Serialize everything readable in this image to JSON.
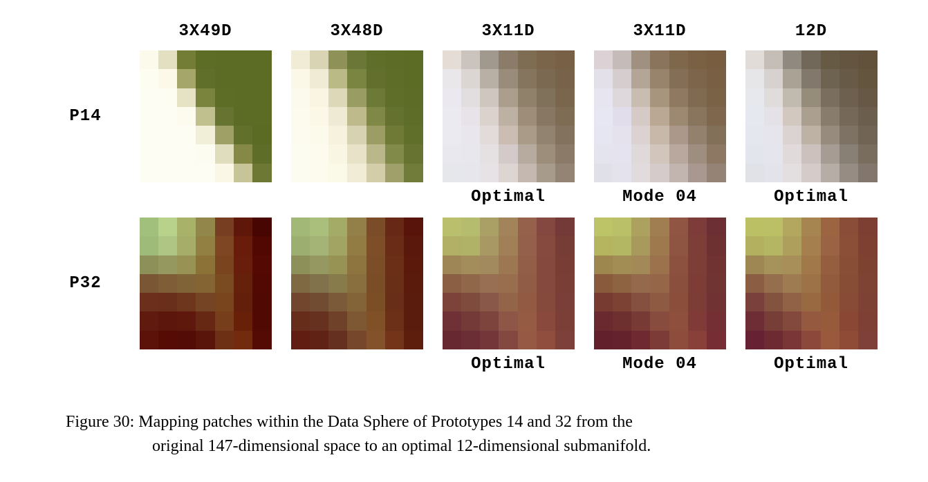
{
  "columnHeaders": [
    "3X49D",
    "3X48D",
    "3X11D",
    "3X11D",
    "12D"
  ],
  "rowLabels": [
    "P14",
    "P32"
  ],
  "subLabelsRow1": [
    "",
    "",
    "Optimal",
    "Mode 04",
    "Optimal"
  ],
  "subLabelsRow2": [
    "",
    "",
    "Optimal",
    "Mode 04",
    "Optimal"
  ],
  "caption": {
    "prefix": "Figure 30:",
    "line1": "Mapping patches within the Data Sphere of Prototypes 14 and 32 from the",
    "line2": "original 147-dimensional space to an optimal 12-dimensional submanifold."
  },
  "patches": {
    "p14c1": [
      [
        "#fcfaeb",
        "#e3e0c2",
        "#737d36",
        "#5e6d26",
        "#5c6c25",
        "#5c6c25",
        "#5c6c25"
      ],
      [
        "#fefdf1",
        "#fcf9e9",
        "#a5a66a",
        "#60702a",
        "#5c6c25",
        "#5c6c25",
        "#5c6c25"
      ],
      [
        "#fefdf3",
        "#fefdf2",
        "#e6e2c4",
        "#7a843d",
        "#5d6d26",
        "#5c6c25",
        "#5c6c25"
      ],
      [
        "#fefdf3",
        "#fefdf3",
        "#fdfbee",
        "#c0bf8e",
        "#677431",
        "#5c6c25",
        "#5c6c25"
      ],
      [
        "#fefdf3",
        "#fefdf3",
        "#fefdf3",
        "#f2efd9",
        "#9ea065",
        "#61712b",
        "#5b6b24"
      ],
      [
        "#fefdf3",
        "#fefdf3",
        "#fefdf3",
        "#fdfcf0",
        "#e0ddbf",
        "#848a46",
        "#5e6e28"
      ],
      [
        "#fefdf3",
        "#fefdf3",
        "#fefdf3",
        "#fefdf3",
        "#faf7e6",
        "#c7c597",
        "#6c7833"
      ]
    ],
    "p14c2": [
      [
        "#f0ecd6",
        "#d9d5b4",
        "#8e9258",
        "#6a7736",
        "#5f6e29",
        "#5d6c26",
        "#5c6c25"
      ],
      [
        "#fbf8e7",
        "#efebd4",
        "#baba86",
        "#7b8542",
        "#636f2d",
        "#5e6d27",
        "#5c6c25"
      ],
      [
        "#fcfaec",
        "#f9f5e2",
        "#dcd8b8",
        "#9a9d63",
        "#6d7936",
        "#5f6e28",
        "#5d6c26"
      ],
      [
        "#fdfbee",
        "#fbf8e7",
        "#eeead3",
        "#beba8c",
        "#7f8845",
        "#65722f",
        "#5e6d27"
      ],
      [
        "#fdfbef",
        "#fcfaea",
        "#f6f2dd",
        "#d7d3b2",
        "#9b9d64",
        "#6f7a37",
        "#606f29"
      ],
      [
        "#fdfcf0",
        "#fdfbed",
        "#faf6e4",
        "#e8e3c8",
        "#bab88a",
        "#828a49",
        "#667331"
      ],
      [
        "#fdfcf1",
        "#fdfbee",
        "#fbf9e8",
        "#f1ecd6",
        "#d3cea9",
        "#a0a16a",
        "#727c3a"
      ]
    ],
    "p14c3": [
      [
        "#e6dcd6",
        "#cbc3bd",
        "#a1988e",
        "#8a7c68",
        "#7e6d53",
        "#7a654a",
        "#776046"
      ],
      [
        "#eae7ea",
        "#dcd6d2",
        "#b8afa5",
        "#998c7b",
        "#85745e",
        "#7c6951",
        "#78634a"
      ],
      [
        "#ece8ef",
        "#e2ddde",
        "#cfc7bf",
        "#ab9e8d",
        "#90816b",
        "#80715a",
        "#7a664d"
      ],
      [
        "#ebeaf1",
        "#e8e3e8",
        "#dbd1cd",
        "#bdb1a3",
        "#9e8e79",
        "#887863",
        "#7e6c55"
      ],
      [
        "#eaeaf0",
        "#e9e6ed",
        "#e2dbda",
        "#cbbdb2",
        "#aa9a88",
        "#928270",
        "#83735e"
      ],
      [
        "#e8e8ee",
        "#e9e7ee",
        "#e5e0e1",
        "#d4caca",
        "#b7aa9e",
        "#9d8d7b",
        "#8b7a67"
      ],
      [
        "#e5e7eb",
        "#e8e6ed",
        "#e6e2e5",
        "#ddd5d2",
        "#c5b8b1",
        "#a79b8c",
        "#938474"
      ]
    ],
    "p14c4": [
      [
        "#dcd2d6",
        "#c5bbb8",
        "#9f907f",
        "#8a755c",
        "#7e674b",
        "#7a6144",
        "#785d40"
      ],
      [
        "#e4e0e9",
        "#d5cdce",
        "#b4a697",
        "#98846c",
        "#846e55",
        "#7c654a",
        "#795f43"
      ],
      [
        "#e7e5f0",
        "#ded7dc",
        "#c9bdb1",
        "#a8957e",
        "#8f7a61",
        "#806a51",
        "#7a6247"
      ],
      [
        "#e7e6f3",
        "#e2ddea",
        "#d6cac6",
        "#baa894",
        "#9d8872",
        "#89745d",
        "#7e674d"
      ],
      [
        "#e5e6f1",
        "#e5e2ee",
        "#dbd2d1",
        "#c7b8aa",
        "#ab988a",
        "#93806d",
        "#837058"
      ],
      [
        "#e3e4ee",
        "#e4e3ef",
        "#dfd9da",
        "#d1c5bc",
        "#b8a89d",
        "#9e8e80",
        "#8c7863"
      ],
      [
        "#e0e0e9",
        "#e3e2ed",
        "#e1dbdd",
        "#d5cbca",
        "#c2b4ae",
        "#a9988f",
        "#958376"
      ]
    ],
    "p14c5": [
      [
        "#e2dcd9",
        "#c4beb7",
        "#90897f",
        "#726859",
        "#665a45",
        "#645540",
        "#63523b"
      ],
      [
        "#e6e6e9",
        "#d7d2d0",
        "#aaa295",
        "#82786b",
        "#6e6251",
        "#675a47",
        "#64553f"
      ],
      [
        "#e7e7ee",
        "#e0dcdc",
        "#c1baae",
        "#968c7a",
        "#7a6e5e",
        "#6d604f",
        "#665844"
      ],
      [
        "#e6e8f0",
        "#e4e1e7",
        "#d2c8c0",
        "#aba08f",
        "#887c6c",
        "#756859",
        "#6b5e4c"
      ],
      [
        "#e5e7ef",
        "#e5e5eb",
        "#dbd2d2",
        "#beb2a5",
        "#978b7e",
        "#7e7265",
        "#726454"
      ],
      [
        "#e2e5ec",
        "#e4e5ed",
        "#e1dada",
        "#ccc1bc",
        "#a79c94",
        "#898075",
        "#796d5e"
      ],
      [
        "#e0e2e8",
        "#e3e4eb",
        "#e3dfe0",
        "#d5ccc9",
        "#b6ada6",
        "#968c84",
        "#83766c"
      ]
    ],
    "p32c1": [
      [
        "#a0c07b",
        "#b8d18b",
        "#a9b269",
        "#93864a",
        "#773e21",
        "#5f1709",
        "#470601"
      ],
      [
        "#9fbb79",
        "#aec583",
        "#a6ad68",
        "#927f42",
        "#7e4622",
        "#691c0a",
        "#520802"
      ],
      [
        "#8e9059",
        "#95985f",
        "#989254",
        "#8d7237",
        "#7a441f",
        "#681e0a",
        "#540a03"
      ],
      [
        "#7a5635",
        "#7e5d37",
        "#816338",
        "#846432",
        "#7a4a21",
        "#66210b",
        "#520903"
      ],
      [
        "#6b2f1b",
        "#6a2f1b",
        "#6e361c",
        "#754424",
        "#78451c",
        "#631f0a",
        "#500903"
      ],
      [
        "#611a0e",
        "#5d160b",
        "#5e190c",
        "#662713",
        "#763e1b",
        "#682009",
        "#500a03"
      ],
      [
        "#5c1208",
        "#560c05",
        "#540c06",
        "#591509",
        "#6e3015",
        "#722b0d",
        "#540b04"
      ]
    ],
    "p32c2": [
      [
        "#a2b877",
        "#aabf7c",
        "#a4ab67",
        "#937f48",
        "#7b4c28",
        "#682816",
        "#58140a"
      ],
      [
        "#9caf71",
        "#a4b477",
        "#a1a463",
        "#927c44",
        "#7d4e28",
        "#6b2c17",
        "#5a170b"
      ],
      [
        "#8e9059",
        "#959860",
        "#969355",
        "#8e7540",
        "#7c4e27",
        "#6b2e17",
        "#5b190c"
      ],
      [
        "#7e6943",
        "#82724b",
        "#887b4b",
        "#896f3d",
        "#7b4d27",
        "#6a2f17",
        "#5b1b0c"
      ],
      [
        "#71462c",
        "#714c32",
        "#7a5a38",
        "#836438",
        "#7c4e25",
        "#692e17",
        "#5a1d0d"
      ],
      [
        "#672d1b",
        "#66321f",
        "#6e4128",
        "#7e5832",
        "#805027",
        "#6c2f17",
        "#5a1d0d"
      ],
      [
        "#611d11",
        "#602215",
        "#663020",
        "#76472b",
        "#83522b",
        "#733419",
        "#5d1e0d"
      ]
    ],
    "p32c3": [
      [
        "#b9bf6c",
        "#b5bc6e",
        "#aaa066",
        "#a2835a",
        "#96614b",
        "#854840",
        "#743a37"
      ],
      [
        "#b2b066",
        "#b0b268",
        "#a89964",
        "#a17f57",
        "#95604b",
        "#864a3f",
        "#763c36"
      ],
      [
        "#9e8656",
        "#a28d5b",
        "#a28a5e",
        "#9c7752",
        "#925e47",
        "#85493e",
        "#783e35"
      ],
      [
        "#8b5f43",
        "#906849",
        "#986f52",
        "#996e4e",
        "#905c45",
        "#85493d",
        "#793f37"
      ],
      [
        "#7b433a",
        "#7e4b3d",
        "#895848",
        "#946448",
        "#925a42",
        "#864a3c",
        "#793f38"
      ],
      [
        "#6f3135",
        "#733a37",
        "#7c443d",
        "#8d5646",
        "#955b43",
        "#89493d",
        "#7b3f38"
      ],
      [
        "#672831",
        "#6c2e35",
        "#743639",
        "#83483f",
        "#965944",
        "#904e3f",
        "#7e403a"
      ]
    ],
    "p32c4": [
      [
        "#bdc467",
        "#b9c068",
        "#aca15f",
        "#a17e51",
        "#905543",
        "#7d3c39",
        "#6c2f33"
      ],
      [
        "#b5b45f",
        "#b3b662",
        "#a89a5d",
        "#9f794e",
        "#8f5543",
        "#7e3e38",
        "#6e3132"
      ],
      [
        "#9e874e",
        "#a28e55",
        "#a28957",
        "#9b724b",
        "#8c523f",
        "#7d3e37",
        "#703332"
      ],
      [
        "#895a3c",
        "#8e6342",
        "#95694b",
        "#956648",
        "#8a4f3d",
        "#7d3d36",
        "#703432"
      ],
      [
        "#773b32",
        "#7c4335",
        "#855040",
        "#8e5a41",
        "#8b4e3b",
        "#7d3c35",
        "#713233"
      ],
      [
        "#6a292f",
        "#6e302f",
        "#783a34",
        "#874c3e",
        "#8e503c",
        "#803a37",
        "#732f33"
      ],
      [
        "#62202c",
        "#64222d",
        "#6e2a30",
        "#7c3b36",
        "#8e4c3d",
        "#884039",
        "#762e34"
      ]
    ],
    "p32c5": [
      [
        "#bcc065",
        "#bbc067",
        "#b3a65e",
        "#a78551",
        "#9b6542",
        "#8a4d37",
        "#7c3f31"
      ],
      [
        "#b3b160",
        "#b4b664",
        "#ae9f5c",
        "#a5804e",
        "#9a6343",
        "#8b4e37",
        "#7e4031"
      ],
      [
        "#9e8753",
        "#a6935a",
        "#a88e58",
        "#a07849",
        "#955e3f",
        "#894e36",
        "#7e4231"
      ],
      [
        "#8b5e44",
        "#956e4d",
        "#9f7b52",
        "#9d7246",
        "#935b3d",
        "#884d35",
        "#7e4333"
      ],
      [
        "#7a403b",
        "#84533f",
        "#916246",
        "#996941",
        "#935a3a",
        "#884c36",
        "#7d4234"
      ],
      [
        "#6e2c35",
        "#773d37",
        "#83493d",
        "#95593f",
        "#975b3c",
        "#8a4834",
        "#7e3f35"
      ],
      [
        "#662233",
        "#6e2a31",
        "#7a3637",
        "#8b483b",
        "#9a583d",
        "#904b37",
        "#80403a"
      ]
    ]
  }
}
